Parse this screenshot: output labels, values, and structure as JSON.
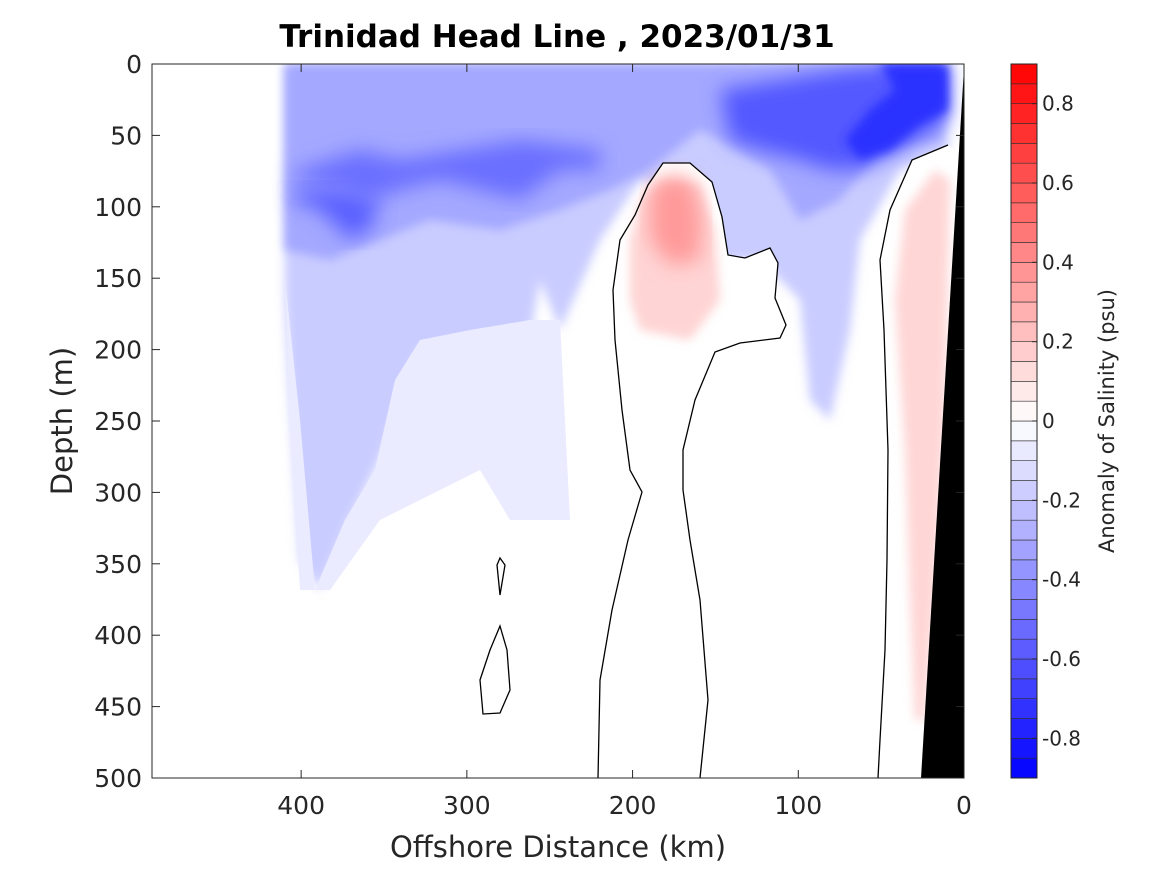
{
  "chart_data": {
    "type": "heatmap",
    "title": "Trinidad Head Line , 2023/01/31",
    "xlabel": "Offshore Distance (km)",
    "ylabel": "Depth (m)",
    "xlim": [
      490,
      0
    ],
    "ylim": [
      500,
      0
    ],
    "x_reversed": true,
    "y_reversed": true,
    "xticks": [
      400,
      300,
      200,
      100,
      0
    ],
    "yticks": [
      0,
      50,
      100,
      150,
      200,
      250,
      300,
      350,
      400,
      450,
      500
    ],
    "colorbar": {
      "label": "Anomaly of Salinity (psu)",
      "range": [
        -0.9,
        0.9
      ],
      "step": 0.05,
      "ticks": [
        0.8,
        0.6,
        0.4,
        0.2,
        0,
        -0.2,
        -0.4,
        -0.6,
        -0.8
      ],
      "tick_labels": [
        "0.8",
        "0.6",
        "0.4",
        "0.2",
        "0",
        "-0.2",
        "-0.4",
        "-0.6",
        "-0.8"
      ],
      "colormap": "blue-white-red",
      "low_color": "#0000ff",
      "mid_color": "#ffffff",
      "high_color": "#ff0000"
    },
    "data_extent_km": [
      410,
      0
    ],
    "bathymetry_color": "#000000",
    "zero_contour_color": "#000000",
    "features": [
      {
        "kind": "fresh_anomaly",
        "x": 370,
        "y": 115,
        "value": -0.45
      },
      {
        "kind": "fresh_anomaly",
        "x": 290,
        "y": 95,
        "value": -0.38
      },
      {
        "kind": "fresh_anomaly",
        "x": 25,
        "y": 15,
        "value": -0.7
      },
      {
        "kind": "fresh_anomaly",
        "x": 50,
        "y": 60,
        "value": -0.62
      },
      {
        "kind": "fresh_anomaly",
        "x": 115,
        "y": 60,
        "value": -0.45
      },
      {
        "kind": "saline_anomaly",
        "x": 178,
        "y": 100,
        "value": 0.4
      },
      {
        "kind": "saline_anomaly",
        "x": 30,
        "y": 200,
        "value": 0.15
      }
    ]
  }
}
